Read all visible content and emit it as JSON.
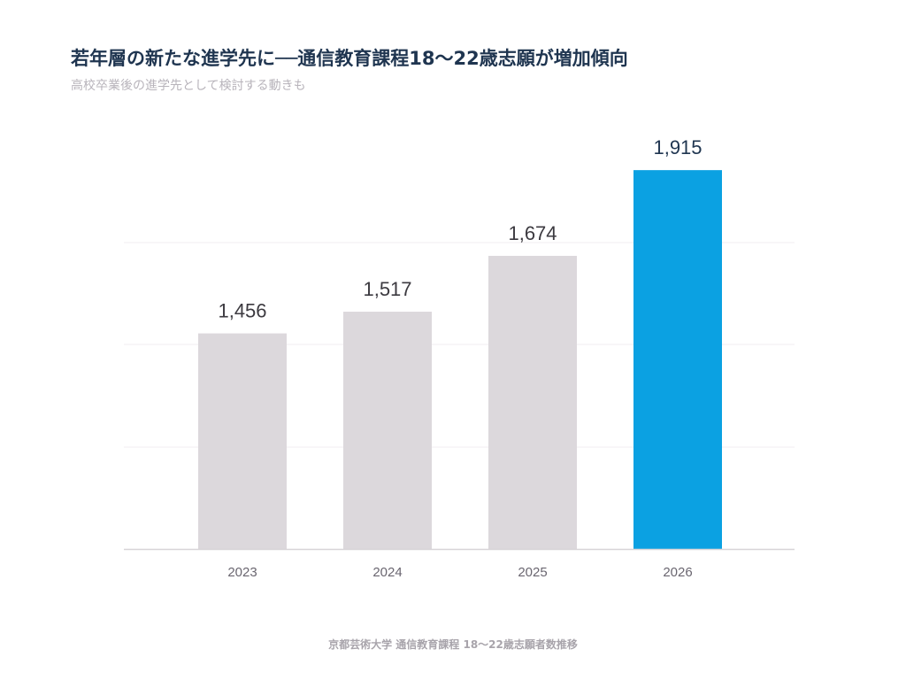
{
  "header": {
    "title": "若年層の新たな進学先に──通信教育課程18〜22歳志願が増加傾向",
    "subtitle": "高校卒業後の進学先として検討する動きも"
  },
  "footer": {
    "source": "京都芸術大学 通信教育課程 18〜22歳志願者数推移"
  },
  "colors": {
    "bar_default": "#dcd8dc",
    "bar_highlight": "#0ba1e2",
    "value_default": "#3c3a40",
    "value_highlight": "#1f3550",
    "axis_label": "#6a6670",
    "gridline": "#f1eef1",
    "baseline": "#d8d4d8"
  },
  "chart_data": {
    "type": "bar",
    "categories": [
      "2023",
      "2024",
      "2025",
      "2026"
    ],
    "values": [
      1456,
      1517,
      1674,
      1915
    ],
    "value_labels": [
      "1,456",
      "1,517",
      "1,674",
      "1,915"
    ],
    "highlight_category": "2026",
    "title": "",
    "xlabel": "",
    "ylabel": "",
    "ylim": [
      850,
      2000
    ],
    "grid": true,
    "legend": "none"
  }
}
